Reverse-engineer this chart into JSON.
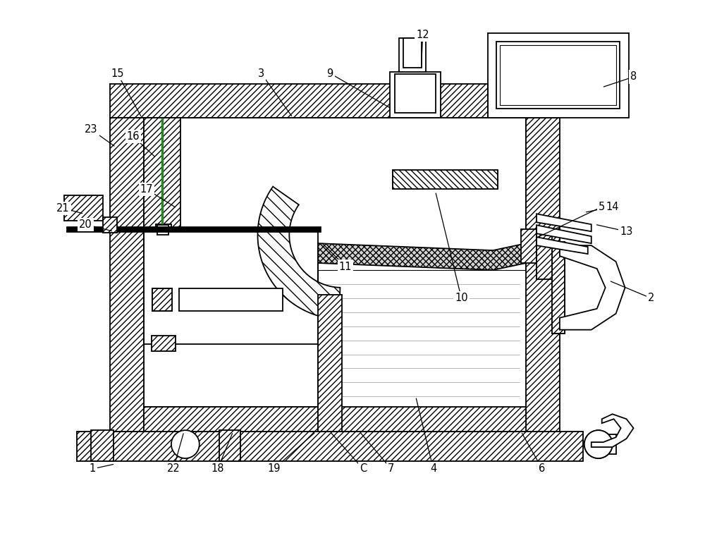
{
  "figsize": [
    10.0,
    7.63
  ],
  "dpi": 100,
  "bg_color": "#ffffff",
  "labels": [
    [
      "1",
      130,
      97,
      162,
      104
    ],
    [
      "2",
      925,
      340,
      865,
      365
    ],
    [
      "3",
      370,
      660,
      415,
      597
    ],
    [
      "4",
      615,
      97,
      590,
      200
    ],
    [
      "5",
      855,
      470,
      760,
      425
    ],
    [
      "6",
      770,
      97,
      740,
      150
    ],
    [
      "7",
      555,
      97,
      510,
      150
    ],
    [
      "8",
      900,
      655,
      855,
      640
    ],
    [
      "9",
      468,
      660,
      555,
      610
    ],
    [
      "10",
      655,
      340,
      618,
      492
    ],
    [
      "11",
      490,
      385,
      455,
      420
    ],
    [
      "12",
      600,
      715,
      598,
      670
    ],
    [
      "13",
      890,
      435,
      845,
      445
    ],
    [
      "14",
      870,
      470,
      830,
      462
    ],
    [
      "15",
      165,
      660,
      200,
      597
    ],
    [
      "16",
      188,
      570,
      220,
      540
    ],
    [
      "17",
      207,
      495,
      250,
      468
    ],
    [
      "18",
      308,
      97,
      330,
      150
    ],
    [
      "19",
      388,
      97,
      448,
      150
    ],
    [
      "20",
      120,
      445,
      160,
      435
    ],
    [
      "21",
      88,
      468,
      118,
      460
    ],
    [
      "22",
      245,
      97,
      260,
      150
    ],
    [
      "23",
      128,
      580,
      163,
      555
    ],
    [
      "C",
      515,
      97,
      468,
      150
    ]
  ]
}
